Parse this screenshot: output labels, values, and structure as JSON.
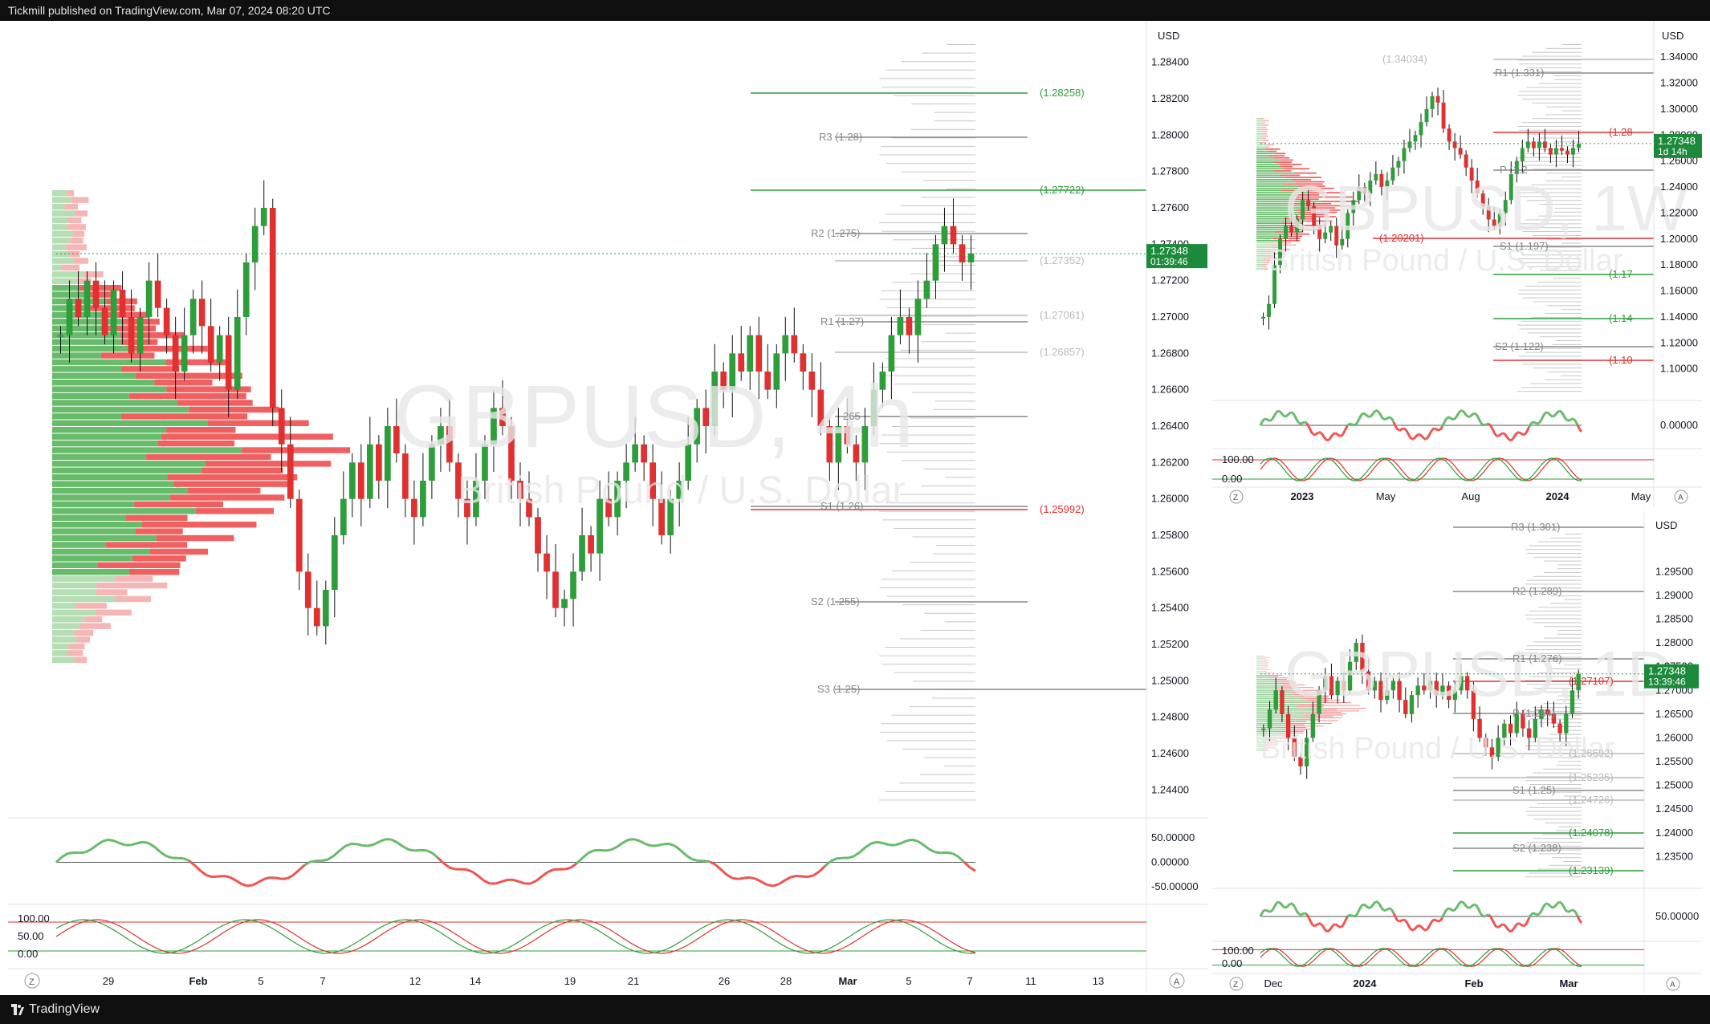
{
  "header": {
    "publisher_text": "Tickmill published on TradingView.com, Mar 07, 2024 08:20 UTC"
  },
  "footer": {
    "brand": "TradingView"
  },
  "colors": {
    "up": "#2e9e3a",
    "down": "#e03030",
    "blue": "#2962ff",
    "orange": "#f7a600",
    "magenta": "#d04fd0",
    "grey": "#888888"
  },
  "main_chart": {
    "watermark": "GBPUSD, 4h",
    "watermark_sub": "British Pound / U.S. Dollar",
    "currency": "USD",
    "price_axis": [
      "1.28400",
      "1.28200",
      "1.28000",
      "1.27800",
      "1.27600",
      "1.27400",
      "1.27200",
      "1.27000",
      "1.26800",
      "1.26600",
      "1.26400",
      "1.26200",
      "1.26000",
      "1.25800",
      "1.25600",
      "1.25400",
      "1.25200",
      "1.25000",
      "1.24800",
      "1.24600",
      "1.24400"
    ],
    "last_price": "1.27348",
    "countdown": "01:39:46",
    "levels": [
      {
        "label": "(1.28258)",
        "color": "#2e9e3a"
      },
      {
        "label": "R3 (1.28)",
        "color": "#888888"
      },
      {
        "label": "(1.27722)",
        "color": "#2e9e3a"
      },
      {
        "label": "R2 (1.275)",
        "color": "#888888"
      },
      {
        "label": "(1.27352)",
        "color": "#bbbbbb"
      },
      {
        "label": "(1.27061)",
        "color": "#bbbbbb"
      },
      {
        "label": "R1 (1.27)",
        "color": "#888888"
      },
      {
        "label": "(1.26857)",
        "color": "#bbbbbb"
      },
      {
        "label": "265",
        "color": "#888888"
      },
      {
        "label": "S1 (1.26)",
        "color": "#888888"
      },
      {
        "label": "(1.25992)",
        "color": "#e03030"
      },
      {
        "label": "S2 (1.255)",
        "color": "#888888"
      },
      {
        "label": "S3 (1.25)",
        "color": "#888888"
      }
    ],
    "time_axis": [
      "29",
      "Feb",
      "5",
      "7",
      "12",
      "14",
      "19",
      "21",
      "26",
      "28",
      "Mar",
      "5",
      "7",
      "11",
      "13"
    ],
    "osc1_axis": [
      "50.00000",
      "0.00000",
      "-50.00000"
    ],
    "osc2_axis": [
      "100.00",
      "50.00",
      "0.00"
    ],
    "z_label": "Z",
    "a_label": "A"
  },
  "weekly_chart": {
    "watermark": "GBPUSD, 1W",
    "watermark_sub": "British Pound / U.S. Dollar",
    "currency": "USD",
    "price_axis": [
      "1.34000",
      "1.32000",
      "1.30000",
      "1.28000",
      "1.26000",
      "1.24000",
      "1.22000",
      "1.20000",
      "1.18000",
      "1.16000",
      "1.14000",
      "1.12000",
      "1.10000"
    ],
    "last_price": "1.27348",
    "countdown": "1d 14h",
    "levels": [
      {
        "label": "(1.34034)",
        "color": "#bbbbbb"
      },
      {
        "label": "R1 (1.331)",
        "color": "#888888"
      },
      {
        "label": "(1.28",
        "color": "#e03030"
      },
      {
        "label": "P (1.2",
        "color": "#888888"
      },
      {
        "label": "(1.20201)",
        "color": "#e03030"
      },
      {
        "label": "S1 (1.197)",
        "color": "#888888"
      },
      {
        "label": "(1.17",
        "color": "#2e9e3a"
      },
      {
        "label": "(1.14",
        "color": "#2e9e3a"
      },
      {
        "label": "S2 (1.122)",
        "color": "#888888"
      },
      {
        "label": "(1.10",
        "color": "#e03030"
      }
    ],
    "time_axis": [
      "2023",
      "May",
      "Aug",
      "2024",
      "May"
    ],
    "osc1_axis": [
      "0.00000"
    ],
    "osc2_axis": [
      "100.00",
      "0.00"
    ],
    "z_label": "Z",
    "a_label": "A"
  },
  "daily_chart": {
    "watermark": "GBPUSD, 1D",
    "watermark_sub": "British Pound / U.S. Dollar",
    "currency": "USD",
    "price_axis": [
      "1.29500",
      "1.29000",
      "1.28500",
      "1.28000",
      "1.27500",
      "1.27000",
      "1.26500",
      "1.26000",
      "1.25500",
      "1.25000",
      "1.24500",
      "1.24000",
      "1.23500"
    ],
    "last_price": "1.27348",
    "countdown": "13:39:46",
    "levels": [
      {
        "label": "R3 (1.301)",
        "color": "#888888"
      },
      {
        "label": "R2 (1.289)",
        "color": "#888888"
      },
      {
        "label": "R1 (1.276)",
        "color": "#888888"
      },
      {
        "label": "(1.27107)",
        "color": "#e03030"
      },
      {
        "label": "P (1.264)",
        "color": "#888888"
      },
      {
        "label": "(1.25692)",
        "color": "#bbbbbb"
      },
      {
        "label": "(1.25235)",
        "color": "#bbbbbb"
      },
      {
        "label": "S1 (1.25)",
        "color": "#888888"
      },
      {
        "label": "(1.24726)",
        "color": "#bbbbbb"
      },
      {
        "label": "(1.24078)",
        "color": "#2e9e3a"
      },
      {
        "label": "S2 (1.238)",
        "color": "#888888"
      },
      {
        "label": "(1.23139)",
        "color": "#2e9e3a"
      }
    ],
    "time_axis": [
      "Dec",
      "2024",
      "Feb",
      "Mar"
    ],
    "osc1_axis": [
      "50.00000"
    ],
    "osc2_axis": [
      "100.00",
      "0.00"
    ],
    "z_label": "Z",
    "a_label": "A"
  },
  "chart_data": [
    {
      "type": "candlestick",
      "title": "GBPUSD, 4h",
      "subtitle": "British Pound / U.S. Dollar",
      "ylim": [
        1.243,
        1.285
      ],
      "last": 1.27348,
      "closes": [
        1.269,
        1.271,
        1.27,
        1.272,
        1.2705,
        1.269,
        1.2715,
        1.27,
        1.268,
        1.27,
        1.272,
        1.2705,
        1.269,
        1.267,
        1.269,
        1.271,
        1.2695,
        1.2675,
        1.269,
        1.266,
        1.27,
        1.273,
        1.275,
        1.276,
        1.265,
        1.263,
        1.26,
        1.256,
        1.254,
        1.253,
        1.255,
        1.258,
        1.26,
        1.262,
        1.26,
        1.263,
        1.261,
        1.264,
        1.2625,
        1.26,
        1.259,
        1.261,
        1.263,
        1.264,
        1.262,
        1.26,
        1.259,
        1.261,
        1.263,
        1.265,
        1.264,
        1.261,
        1.26,
        1.259,
        1.257,
        1.256,
        1.254,
        1.2545,
        1.256,
        1.258,
        1.257,
        1.26,
        1.259,
        1.261,
        1.262,
        1.263,
        1.262,
        1.26,
        1.258,
        1.26,
        1.261,
        1.263,
        1.265,
        1.264,
        1.267,
        1.266,
        1.268,
        1.267,
        1.269,
        1.267,
        1.266,
        1.268,
        1.269,
        1.268,
        1.267,
        1.266,
        1.264,
        1.262,
        1.264,
        1.263,
        1.262,
        1.264,
        1.266,
        1.267,
        1.269,
        1.27,
        1.269,
        1.271,
        1.272,
        1.274,
        1.275,
        1.274,
        1.273,
        1.2735
      ]
    },
    {
      "type": "candlestick",
      "title": "GBPUSD, 1W",
      "subtitle": "British Pound / U.S. Dollar",
      "ylim": [
        1.08,
        1.35
      ],
      "last": 1.27348,
      "closes": [
        1.14,
        1.15,
        1.18,
        1.2,
        1.21,
        1.205,
        1.215,
        1.23,
        1.225,
        1.21,
        1.2,
        1.205,
        1.21,
        1.195,
        1.2,
        1.22,
        1.23,
        1.24,
        1.235,
        1.245,
        1.25,
        1.24,
        1.245,
        1.255,
        1.26,
        1.27,
        1.275,
        1.28,
        1.29,
        1.3,
        1.31,
        1.305,
        1.285,
        1.275,
        1.27,
        1.265,
        1.255,
        1.245,
        1.235,
        1.225,
        1.215,
        1.21,
        1.22,
        1.23,
        1.25,
        1.26,
        1.27,
        1.275,
        1.27,
        1.275,
        1.27,
        1.265,
        1.27,
        1.268,
        1.265,
        1.27,
        1.2735
      ]
    },
    {
      "type": "candlestick",
      "title": "GBPUSD, 1D",
      "subtitle": "British Pound / U.S. Dollar",
      "ylim": [
        1.23,
        1.303
      ],
      "last": 1.27348,
      "closes": [
        1.262,
        1.266,
        1.27,
        1.265,
        1.26,
        1.256,
        1.254,
        1.26,
        1.265,
        1.27,
        1.273,
        1.269,
        1.272,
        1.27,
        1.276,
        1.28,
        1.274,
        1.27,
        1.272,
        1.268,
        1.27,
        1.272,
        1.268,
        1.265,
        1.269,
        1.271,
        1.27,
        1.272,
        1.269,
        1.271,
        1.268,
        1.27,
        1.273,
        1.27,
        1.264,
        1.26,
        1.258,
        1.256,
        1.26,
        1.263,
        1.261,
        1.265,
        1.262,
        1.26,
        1.264,
        1.266,
        1.265,
        1.263,
        1.261,
        1.265,
        1.27,
        1.2735
      ]
    }
  ]
}
